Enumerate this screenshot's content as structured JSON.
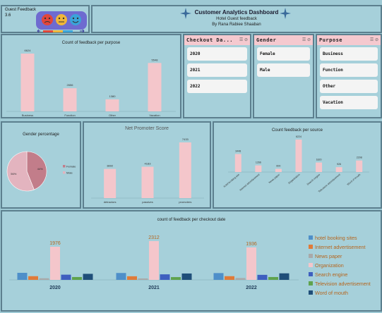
{
  "header": {
    "badge_line1": "Guest Feedback",
    "badge_line2": "3.6",
    "title": "Customer Analytics Dashboard",
    "subtitle": "Hotel Guest feedback",
    "author": "By Rana Rabiee Shaaban"
  },
  "colors": {
    "pink": "#f4c6cb",
    "page": "#9ec9d4",
    "panel": "#a6d0da",
    "border": "#5c7f8e",
    "accent": "#3a6a9a"
  },
  "slicers": {
    "checkout": {
      "title": "Checkout Da...",
      "items": [
        "2020",
        "2021",
        "2022"
      ]
    },
    "gender": {
      "title": "Gender",
      "items": [
        "Female",
        "Male"
      ]
    },
    "purpose": {
      "title": "Purpose",
      "items": [
        "Business",
        "Function",
        "Other",
        "Vacation"
      ]
    }
  },
  "chart_data": [
    {
      "id": "purpose",
      "type": "bar",
      "title": "Count of feedback per purpose",
      "categories": [
        "Business",
        "Function",
        "Other",
        "Vacation"
      ],
      "values": [
        6624,
        2656,
        1380,
        5548
      ]
    },
    {
      "id": "gender",
      "type": "pie",
      "title": "Gender percentage",
      "categories": [
        "Female",
        "Male"
      ],
      "values": [
        44,
        56
      ],
      "labels": [
        "44%",
        "56%"
      ],
      "colors": [
        "#c27d8a",
        "#e3b4bf"
      ]
    },
    {
      "id": "nps",
      "type": "bar",
      "title": "Net Promoter Score",
      "categories": [
        "detractors",
        "passives",
        "promoters"
      ],
      "values": [
        3892,
        4183,
        7433
      ]
    },
    {
      "id": "source",
      "type": "bar",
      "title": "Count feedback per source",
      "categories": [
        "hotel booking site",
        "Internet advertisement",
        "News paper",
        "Organization",
        "Search engine",
        "Television advertisement",
        "Word of mouth"
      ],
      "values": [
        3448,
        1266,
        600,
        6224,
        1820,
        926,
        2208
      ]
    },
    {
      "id": "checkout",
      "type": "bar",
      "title": "count of feedback per checkout date",
      "categories": [
        "2020",
        "2021",
        "2022"
      ],
      "series": [
        {
          "name": "hotel booking sites",
          "color": "#4e8fc9",
          "values": [
            420,
            410,
            405
          ]
        },
        {
          "name": "Internet advertisement",
          "color": "#e07b39",
          "values": [
            220,
            215,
            220
          ]
        },
        {
          "name": "News paper",
          "color": "#a9a9a9",
          "values": [
            95,
            85,
            110
          ]
        },
        {
          "name": "Organization",
          "color": "#f4c6cb",
          "values": [
            1976,
            2312,
            1936
          ]
        },
        {
          "name": "Search engine",
          "color": "#3e5fbf",
          "values": [
            310,
            330,
            300
          ]
        },
        {
          "name": "Television advertisement",
          "color": "#5fa34d",
          "values": [
            170,
            165,
            170
          ]
        },
        {
          "name": "Word of mouth",
          "color": "#1f4e79",
          "values": [
            360,
            380,
            390
          ]
        }
      ],
      "data_labels": [
        "1976",
        "2312",
        "1936"
      ],
      "legend_position": "right"
    }
  ]
}
